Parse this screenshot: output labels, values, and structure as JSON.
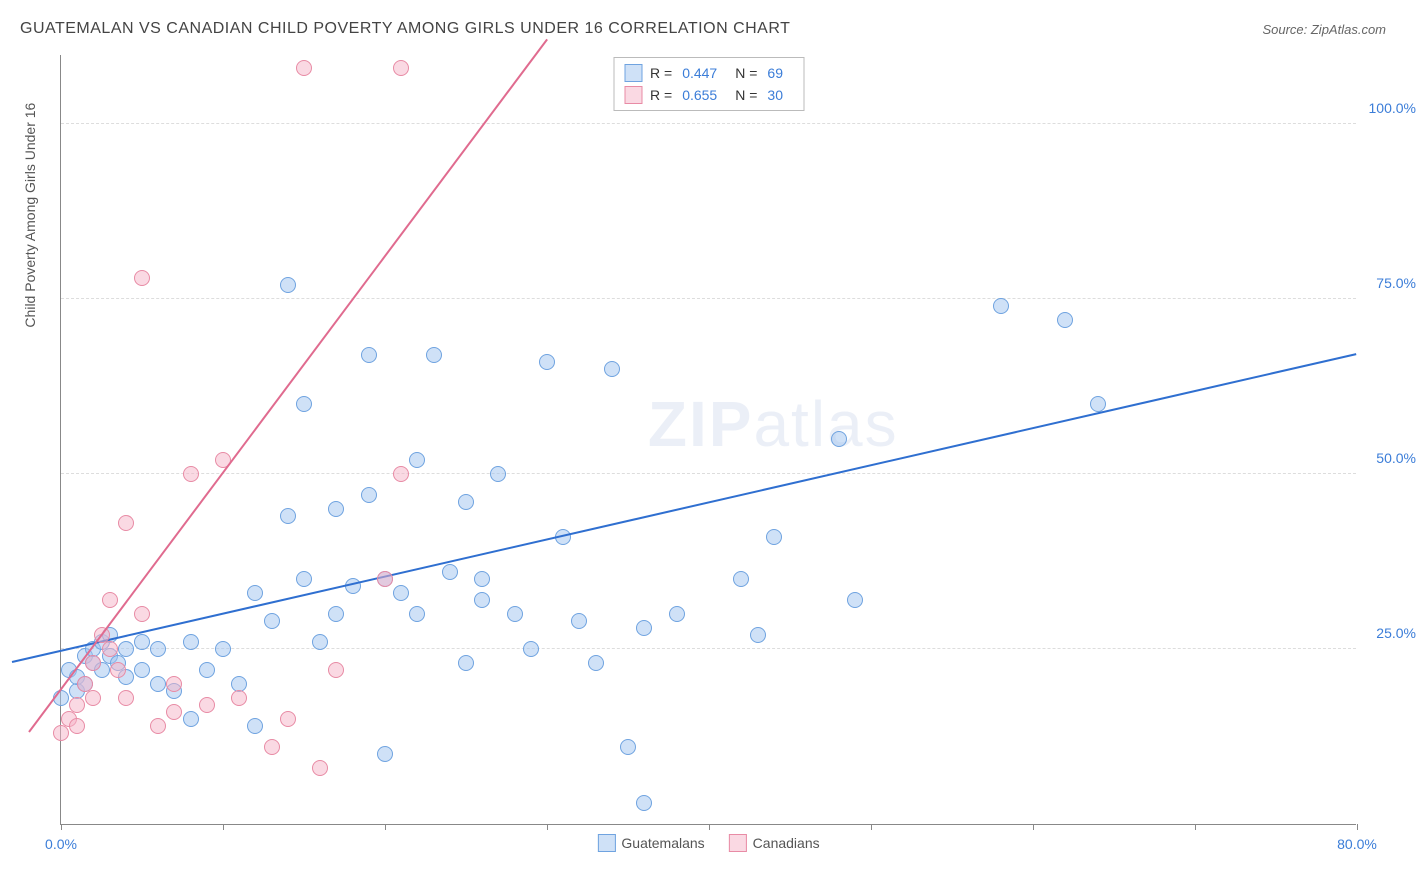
{
  "title": "GUATEMALAN VS CANADIAN CHILD POVERTY AMONG GIRLS UNDER 16 CORRELATION CHART",
  "source_label": "Source: ZipAtlas.com",
  "y_axis_label": "Child Poverty Among Girls Under 16",
  "watermark": {
    "bold": "ZIP",
    "rest": "atlas"
  },
  "chart": {
    "type": "scatter",
    "background_color": "#ffffff",
    "grid_color": "#dddddd",
    "axis_color": "#888888",
    "xlim": [
      0,
      80
    ],
    "ylim": [
      0,
      110
    ],
    "x_ticks": [
      0,
      10,
      20,
      30,
      40,
      50,
      60,
      70,
      80
    ],
    "x_tick_labels": {
      "0": "0.0%",
      "80": "80.0%"
    },
    "y_ticks": [
      25,
      50,
      75,
      100
    ],
    "y_tick_labels": {
      "25": "25.0%",
      "50": "50.0%",
      "75": "75.0%",
      "100": "100.0%"
    },
    "marker_radius": 8,
    "marker_stroke_width": 1.5,
    "series": [
      {
        "name": "Guatemalans",
        "fill_color": "rgba(160,195,240,0.5)",
        "stroke_color": "#6fa3e0",
        "R": "0.447",
        "N": "69",
        "trend": {
          "x1": -3,
          "y1": 23,
          "x2": 80,
          "y2": 67,
          "color": "#2f6fd0",
          "width": 2
        },
        "points": [
          [
            0,
            18
          ],
          [
            0.5,
            22
          ],
          [
            1,
            19
          ],
          [
            1,
            21
          ],
          [
            1.5,
            20
          ],
          [
            1.5,
            24
          ],
          [
            2,
            23
          ],
          [
            2,
            25
          ],
          [
            2.5,
            22
          ],
          [
            2.5,
            26
          ],
          [
            3,
            24
          ],
          [
            3,
            27
          ],
          [
            3.5,
            23
          ],
          [
            4,
            25
          ],
          [
            4,
            21
          ],
          [
            5,
            26
          ],
          [
            5,
            22
          ],
          [
            6,
            25
          ],
          [
            6,
            20
          ],
          [
            7,
            19
          ],
          [
            8,
            26
          ],
          [
            9,
            22
          ],
          [
            10,
            25
          ],
          [
            11,
            20
          ],
          [
            12,
            33
          ],
          [
            13,
            29
          ],
          [
            14,
            77
          ],
          [
            14,
            44
          ],
          [
            15,
            35
          ],
          [
            15,
            60
          ],
          [
            16,
            26
          ],
          [
            17,
            30
          ],
          [
            17,
            45
          ],
          [
            18,
            34
          ],
          [
            19,
            47
          ],
          [
            19,
            67
          ],
          [
            20,
            35
          ],
          [
            20,
            10
          ],
          [
            21,
            33
          ],
          [
            22,
            30
          ],
          [
            22,
            52
          ],
          [
            23,
            67
          ],
          [
            24,
            36
          ],
          [
            25,
            46
          ],
          [
            25,
            23
          ],
          [
            26,
            35
          ],
          [
            26,
            32
          ],
          [
            27,
            50
          ],
          [
            28,
            30
          ],
          [
            29,
            25
          ],
          [
            30,
            66
          ],
          [
            31,
            41
          ],
          [
            32,
            29
          ],
          [
            33,
            23
          ],
          [
            34,
            65
          ],
          [
            35,
            11
          ],
          [
            36,
            28
          ],
          [
            36,
            3
          ],
          [
            42,
            35
          ],
          [
            43,
            27
          ],
          [
            44,
            41
          ],
          [
            48,
            55
          ],
          [
            49,
            32
          ],
          [
            58,
            74
          ],
          [
            62,
            72
          ],
          [
            64,
            60
          ],
          [
            38,
            30
          ],
          [
            12,
            14
          ],
          [
            8,
            15
          ]
        ]
      },
      {
        "name": "Canadians",
        "fill_color": "rgba(245,180,200,0.5)",
        "stroke_color": "#e88ba5",
        "R": "0.655",
        "N": "30",
        "trend": {
          "x1": -2,
          "y1": 13,
          "x2": 30,
          "y2": 112,
          "color": "#e06b8f",
          "width": 2
        },
        "points": [
          [
            0,
            13
          ],
          [
            0.5,
            15
          ],
          [
            1,
            17
          ],
          [
            1,
            14
          ],
          [
            1.5,
            20
          ],
          [
            2,
            18
          ],
          [
            2,
            23
          ],
          [
            2.5,
            27
          ],
          [
            3,
            25
          ],
          [
            3,
            32
          ],
          [
            3.5,
            22
          ],
          [
            4,
            18
          ],
          [
            4,
            43
          ],
          [
            5,
            30
          ],
          [
            5,
            78
          ],
          [
            6,
            14
          ],
          [
            7,
            20
          ],
          [
            7,
            16
          ],
          [
            8,
            50
          ],
          [
            9,
            17
          ],
          [
            10,
            52
          ],
          [
            11,
            18
          ],
          [
            13,
            11
          ],
          [
            14,
            15
          ],
          [
            15,
            108
          ],
          [
            16,
            8
          ],
          [
            20,
            35
          ],
          [
            21,
            50
          ],
          [
            21,
            108
          ],
          [
            17,
            22
          ]
        ]
      }
    ]
  },
  "legend_top": {
    "label_R": "R =",
    "label_N": "N ="
  },
  "legend_bottom": {
    "items": [
      "Guatemalans",
      "Canadians"
    ]
  }
}
